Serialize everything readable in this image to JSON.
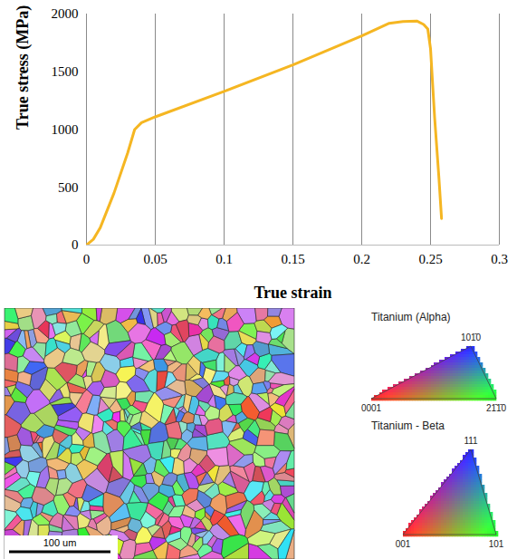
{
  "chart_data": {
    "type": "line",
    "x_label": "True strain",
    "y_label": "True stress (MPa)",
    "x": [
      0,
      0.005,
      0.01,
      0.02,
      0.03,
      0.035,
      0.04,
      0.05,
      0.1,
      0.15,
      0.2,
      0.22,
      0.23,
      0.24,
      0.245,
      0.248,
      0.25,
      0.253,
      0.256,
      0.258
    ],
    "values": [
      0,
      50,
      150,
      450,
      800,
      1000,
      1060,
      1110,
      1330,
      1560,
      1810,
      1920,
      1935,
      1940,
      1910,
      1870,
      1700,
      1100,
      600,
      230
    ],
    "color": "#f5b622",
    "line_style": "solid",
    "xlim": [
      0,
      0.3
    ],
    "xticks": [
      0,
      0.05,
      0.1,
      0.15,
      0.2,
      0.25,
      0.3
    ],
    "ylim": [
      0,
      2000
    ],
    "yticks": [
      0,
      500,
      1000,
      1500,
      2000
    ],
    "grid": "x"
  },
  "ebsd_map": {
    "scale_bar": "100 um",
    "ipf_legends": [
      {
        "title": "Titanium (Alpha)",
        "corners": {
          "top": "101̄0",
          "left": "0001",
          "right": "21̄1̄0"
        }
      },
      {
        "title": "Titanium - Beta",
        "corners": {
          "top": "111",
          "left": "001",
          "right": "101"
        }
      }
    ]
  }
}
